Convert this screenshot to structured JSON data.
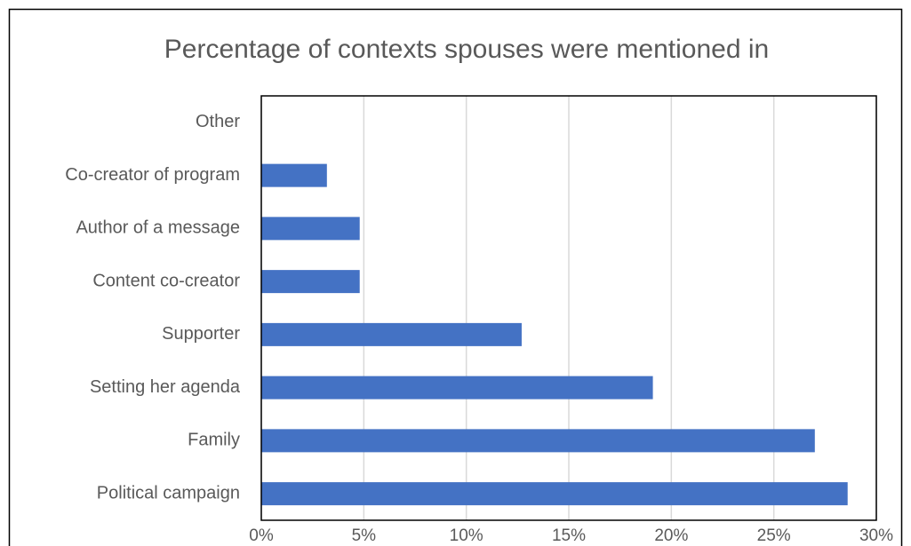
{
  "chart_data": {
    "type": "barh",
    "title": "Percentage of contexts spouses were mentioned in",
    "categories": [
      "Other",
      "Co-creator of program",
      "Author of a message",
      "Content co-creator",
      "Supporter",
      "Setting her agenda",
      "Family",
      "Political campaign"
    ],
    "values": [
      0,
      3.2,
      4.8,
      4.8,
      12.7,
      19.1,
      27.0,
      28.6
    ],
    "color": "#4472c4",
    "xlim": [
      0,
      30
    ],
    "xticks": [
      {
        "value": 0,
        "label": "0%"
      },
      {
        "value": 5,
        "label": "5%"
      },
      {
        "value": 10,
        "label": "10%"
      },
      {
        "value": 15,
        "label": "15%"
      },
      {
        "value": 20,
        "label": "20%"
      },
      {
        "value": 25,
        "label": "25%"
      },
      {
        "value": 30,
        "label": "30%"
      }
    ],
    "grid": true
  }
}
